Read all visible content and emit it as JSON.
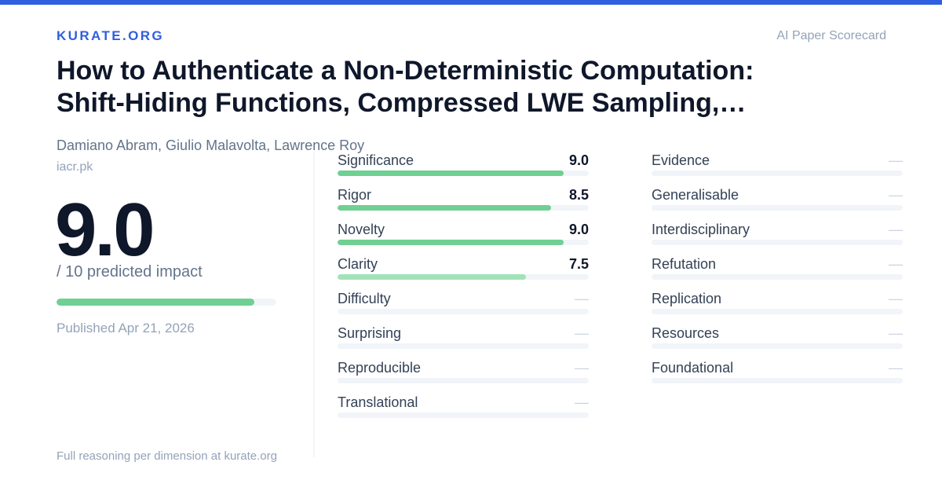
{
  "header": {
    "brand": "KURATE.ORG",
    "tagline": "AI Paper Scorecard"
  },
  "paper": {
    "title_line1": "How to Authenticate a Non-Deterministic Computation:",
    "title_line2": "Shift-Hiding Functions, Compressed LWE Sampling,…",
    "authors": "Damiano Abram, Giulio Malavolta, Lawrence Roy",
    "source": "iacr.pk",
    "published": "Published Apr 21, 2026"
  },
  "score": {
    "value": "9.0",
    "caption": "/ 10 predicted impact",
    "fraction": 0.9
  },
  "colors": {
    "accent": "#2f5fe0",
    "bar_strong": "#6fd092",
    "bar_light": "#a3e2b9"
  },
  "dimensions_left": [
    {
      "label": "Significance",
      "value": "9.0",
      "fraction": 0.9
    },
    {
      "label": "Rigor",
      "value": "8.5",
      "fraction": 0.85
    },
    {
      "label": "Novelty",
      "value": "9.0",
      "fraction": 0.9
    },
    {
      "label": "Clarity",
      "value": "7.5",
      "fraction": 0.75
    },
    {
      "label": "Difficulty",
      "value": "—",
      "fraction": null
    },
    {
      "label": "Surprising",
      "value": "—",
      "fraction": null
    },
    {
      "label": "Reproducible",
      "value": "—",
      "fraction": null
    },
    {
      "label": "Translational",
      "value": "—",
      "fraction": null
    }
  ],
  "dimensions_right": [
    {
      "label": "Evidence",
      "value": "—",
      "fraction": null
    },
    {
      "label": "Generalisable",
      "value": "—",
      "fraction": null
    },
    {
      "label": "Interdisciplinary",
      "value": "—",
      "fraction": null
    },
    {
      "label": "Refutation",
      "value": "—",
      "fraction": null
    },
    {
      "label": "Replication",
      "value": "—",
      "fraction": null
    },
    {
      "label": "Resources",
      "value": "—",
      "fraction": null
    },
    {
      "label": "Foundational",
      "value": "—",
      "fraction": null
    }
  ],
  "footer": {
    "text": "Full reasoning per dimension at kurate.org"
  }
}
